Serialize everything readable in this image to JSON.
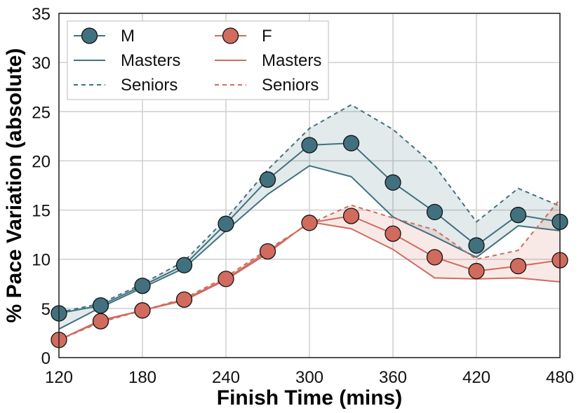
{
  "chart_data": {
    "type": "line",
    "xlabel": "Finish Time (mins)",
    "ylabel": "% Pace Variation (absolute)",
    "xlim": [
      120,
      480
    ],
    "ylim": [
      0,
      35
    ],
    "x_ticks": [
      120,
      180,
      240,
      300,
      360,
      420,
      480
    ],
    "y_ticks": [
      0,
      5,
      10,
      15,
      20,
      25,
      30,
      35
    ],
    "grid": true,
    "legend_placement": "top-left",
    "x": [
      120,
      150,
      180,
      210,
      240,
      270,
      300,
      330,
      360,
      390,
      420,
      450,
      480
    ],
    "series": [
      {
        "group": "M",
        "color": "#41717f",
        "overall": [
          4.5,
          5.3,
          7.3,
          9.4,
          13.6,
          18.1,
          21.6,
          21.8,
          17.8,
          14.8,
          11.4,
          14.5,
          13.8
        ],
        "masters": [
          2.9,
          5.1,
          7.1,
          9.1,
          12.9,
          16.6,
          19.5,
          18.4,
          14.3,
          12.3,
          10.2,
          13.4,
          12.9
        ],
        "seniors": [
          4.6,
          5.5,
          7.5,
          9.8,
          14.1,
          19.1,
          23.3,
          25.7,
          23.2,
          19.5,
          13.8,
          17.2,
          15.4
        ]
      },
      {
        "group": "F",
        "color": "#d16b5e",
        "overall": [
          1.8,
          3.7,
          4.8,
          5.9,
          8.0,
          10.8,
          13.7,
          14.4,
          12.6,
          10.2,
          8.8,
          9.3,
          9.9
        ],
        "masters": [
          1.8,
          3.8,
          4.8,
          5.8,
          7.9,
          10.6,
          13.8,
          13.1,
          11.0,
          8.1,
          8.0,
          8.1,
          7.7
        ],
        "seniors": [
          1.8,
          3.6,
          4.8,
          6.0,
          8.2,
          11.0,
          13.6,
          15.5,
          14.2,
          13.0,
          10.0,
          10.9,
          16.1
        ]
      }
    ],
    "legend": {
      "col1": {
        "header": "M",
        "solid": "Masters",
        "dashed": "Seniors"
      },
      "col2": {
        "header": "F",
        "solid": "Masters",
        "dashed": "Seniors"
      }
    }
  }
}
